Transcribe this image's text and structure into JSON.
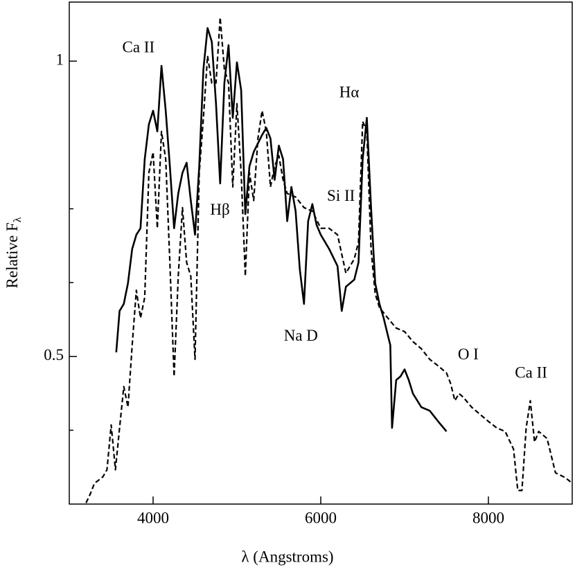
{
  "chart_data": {
    "type": "line",
    "xlabel": "λ (Angstroms)",
    "ylabel": {
      "text": "Relative F",
      "subscript": "λ"
    },
    "xlim": [
      3000,
      9000
    ],
    "ylim": [
      0.25,
      1.1
    ],
    "xticks": [
      4000,
      6000,
      8000
    ],
    "yticks": [
      0.5,
      1
    ],
    "yminorticks": [
      0.375,
      0.625,
      0.75
    ],
    "grid": false,
    "series": [
      {
        "color": "#000000",
        "dash": false,
        "x": [
          3560,
          3600,
          3650,
          3700,
          3750,
          3800,
          3850,
          3900,
          3950,
          4000,
          4050,
          4100,
          4150,
          4200,
          4250,
          4300,
          4350,
          4400,
          4450,
          4500,
          4550,
          4600,
          4650,
          4700,
          4750,
          4800,
          4850,
          4900,
          4950,
          5000,
          5050,
          5100,
          5150,
          5200,
          5300,
          5350,
          5400,
          5450,
          5500,
          5550,
          5600,
          5650,
          5700,
          5750,
          5800,
          5850,
          5900,
          5950,
          6000,
          6100,
          6200,
          6250,
          6300,
          6400,
          6450,
          6500,
          6550,
          6600,
          6650,
          6700,
          6750,
          6800,
          6830,
          6850,
          6900,
          6950,
          7000,
          7050,
          7100,
          7200,
          7300,
          7400,
          7500
        ],
        "values": [
          0.507,
          0.577,
          0.589,
          0.624,
          0.682,
          0.706,
          0.717,
          0.834,
          0.893,
          0.916,
          0.881,
          0.992,
          0.916,
          0.822,
          0.717,
          0.776,
          0.811,
          0.828,
          0.764,
          0.706,
          0.822,
          0.986,
          1.056,
          1.033,
          0.928,
          0.793,
          0.963,
          1.027,
          0.904,
          0.998,
          0.951,
          0.741,
          0.822,
          0.846,
          0.875,
          0.887,
          0.869,
          0.799,
          0.857,
          0.834,
          0.729,
          0.787,
          0.746,
          0.647,
          0.589,
          0.729,
          0.758,
          0.723,
          0.706,
          0.682,
          0.653,
          0.577,
          0.618,
          0.63,
          0.659,
          0.834,
          0.904,
          0.752,
          0.624,
          0.589,
          0.565,
          0.536,
          0.519,
          0.379,
          0.46,
          0.466,
          0.478,
          0.46,
          0.437,
          0.414,
          0.408,
          0.39,
          0.373
        ]
      },
      {
        "color": "#000000",
        "dash": true,
        "x": [
          3200,
          3250,
          3300,
          3400,
          3450,
          3500,
          3550,
          3600,
          3650,
          3700,
          3750,
          3800,
          3850,
          3900,
          3950,
          4000,
          4050,
          4100,
          4150,
          4200,
          4250,
          4300,
          4350,
          4400,
          4450,
          4500,
          4550,
          4600,
          4650,
          4700,
          4750,
          4800,
          4850,
          4900,
          4950,
          5000,
          5050,
          5100,
          5150,
          5200,
          5250,
          5300,
          5350,
          5400,
          5450,
          5500,
          5550,
          5600,
          5700,
          5800,
          5900,
          6000,
          6100,
          6200,
          6300,
          6400,
          6450,
          6500,
          6550,
          6600,
          6650,
          6700,
          6800,
          6900,
          7000,
          7100,
          7200,
          7300,
          7400,
          7500,
          7550,
          7600,
          7650,
          7700,
          7800,
          7900,
          8000,
          8100,
          8200,
          8300,
          8350,
          8400,
          8450,
          8500,
          8550,
          8600,
          8700,
          8800,
          8900,
          8950,
          9000
        ],
        "values": [
          0.252,
          0.267,
          0.285,
          0.296,
          0.308,
          0.384,
          0.308,
          0.379,
          0.449,
          0.414,
          0.519,
          0.612,
          0.565,
          0.6,
          0.811,
          0.846,
          0.717,
          0.881,
          0.834,
          0.659,
          0.466,
          0.636,
          0.752,
          0.659,
          0.636,
          0.495,
          0.811,
          0.904,
          1.009,
          0.963,
          0.963,
          1.074,
          0.986,
          0.963,
          0.787,
          0.928,
          0.811,
          0.636,
          0.811,
          0.764,
          0.869,
          0.916,
          0.881,
          0.787,
          0.822,
          0.84,
          0.799,
          0.776,
          0.77,
          0.752,
          0.746,
          0.717,
          0.717,
          0.706,
          0.641,
          0.665,
          0.694,
          0.898,
          0.881,
          0.682,
          0.606,
          0.583,
          0.565,
          0.548,
          0.542,
          0.525,
          0.513,
          0.495,
          0.484,
          0.472,
          0.454,
          0.425,
          0.437,
          0.431,
          0.414,
          0.402,
          0.39,
          0.379,
          0.373,
          0.343,
          0.273,
          0.273,
          0.379,
          0.425,
          0.355,
          0.373,
          0.361,
          0.303,
          0.296,
          0.291,
          0.285
        ]
      }
    ],
    "annotations": [
      {
        "text": "Ca II",
        "x": 3825,
        "y": 1.021
      },
      {
        "text": "Hβ",
        "x": 4798,
        "y": 0.746
      },
      {
        "text": "Hα",
        "x": 6340,
        "y": 0.945
      },
      {
        "text": "Si II",
        "x": 6241,
        "y": 0.77
      },
      {
        "text": "Na D",
        "x": 5763,
        "y": 0.533
      },
      {
        "text": "O I",
        "x": 7759,
        "y": 0.501
      },
      {
        "text": "Ca II",
        "x": 8509,
        "y": 0.47
      }
    ]
  }
}
